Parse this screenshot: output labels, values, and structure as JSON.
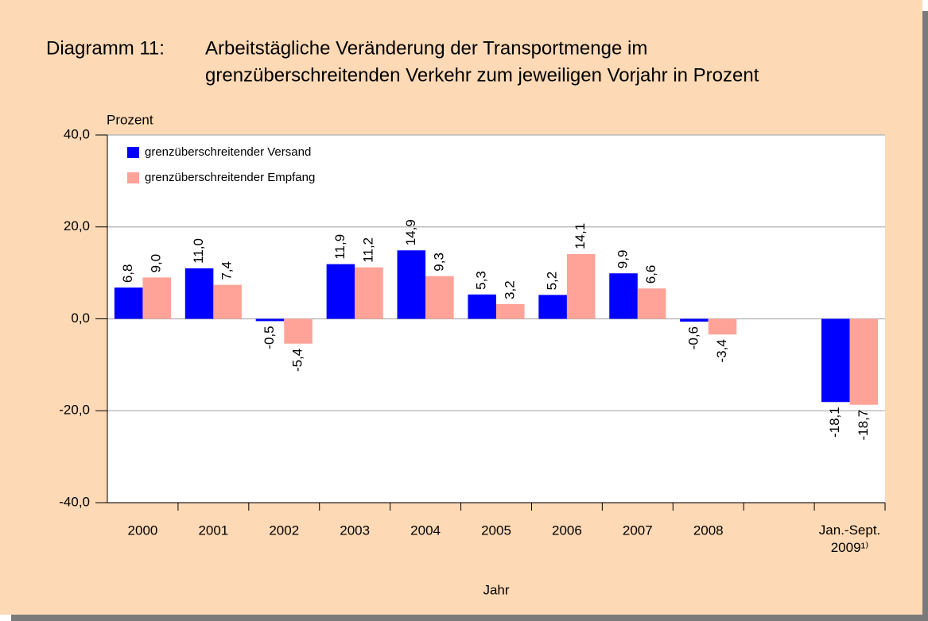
{
  "chart_data": {
    "type": "bar",
    "title_label": "Diagramm 11:",
    "title": [
      "Arbeitstägliche Veränderung der Transportmenge im",
      "grenzüberschreitenden Verkehr zum jeweiligen Vorjahr in Prozent"
    ],
    "y_label": "Prozent",
    "x_label": "Jahr",
    "categories": [
      "2000",
      "2001",
      "2002",
      "2003",
      "2004",
      "2005",
      "2006",
      "2007",
      "2008",
      null,
      "Jan.-Sept.\n2009¹⁾"
    ],
    "series": [
      {
        "name": "grenzüberschreitender Versand",
        "color": "#0000ff",
        "values": [
          6.8,
          11.0,
          -0.5,
          11.9,
          14.9,
          5.3,
          5.2,
          9.9,
          -0.6,
          null,
          -18.1
        ],
        "value_labels": [
          "6,8",
          "11,0",
          "-0,5",
          "11,9",
          "14,9",
          "5,3",
          "5,2",
          "9,9",
          "-0,6",
          null,
          "-18,1"
        ]
      },
      {
        "name": "grenzüberschreitender Empfang",
        "color": "#ffa398",
        "values": [
          9.0,
          7.4,
          -5.4,
          11.2,
          9.3,
          3.2,
          14.1,
          6.6,
          -3.4,
          null,
          -18.7
        ],
        "value_labels": [
          "9,0",
          "7,4",
          "-5,4",
          "11,2",
          "9,3",
          "3,2",
          "14,1",
          "6,6",
          "-3,4",
          null,
          "-18,7"
        ]
      }
    ],
    "ylim": [
      -40,
      40
    ],
    "yticks": [
      {
        "value": -40,
        "label": "-40,0"
      },
      {
        "value": -20,
        "label": "-20,0"
      },
      {
        "value": 0,
        "label": "0,0"
      },
      {
        "value": 20,
        "label": "20,0"
      },
      {
        "value": 40,
        "label": "40,0"
      }
    ],
    "grid": true,
    "legend": "upper left"
  }
}
